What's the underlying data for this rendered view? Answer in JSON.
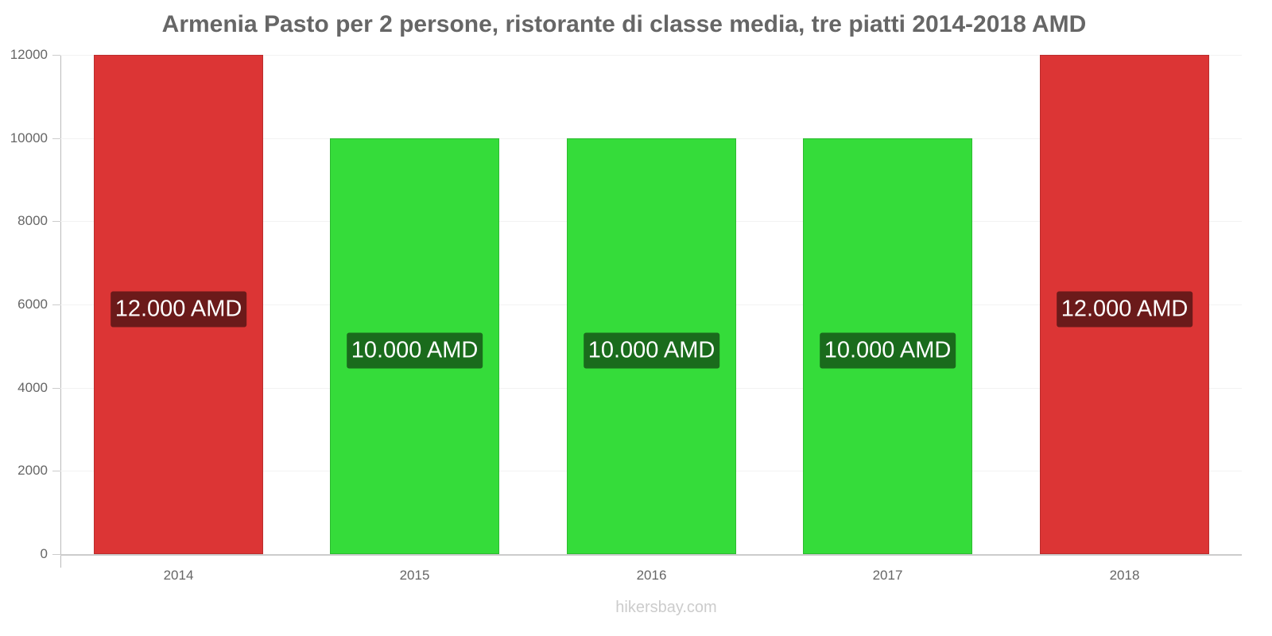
{
  "chart_data": {
    "type": "bar",
    "title": "Armenia Pasto per 2 persone, ristorante di classe media, tre piatti 2014-2018 AMD",
    "categories": [
      "2014",
      "2015",
      "2016",
      "2017",
      "2018"
    ],
    "values": [
      12000,
      10000,
      10000,
      10000,
      12000
    ],
    "value_labels": [
      "12.000 AMD",
      "10.000 AMD",
      "10.000 AMD",
      "10.000 AMD",
      "12.000 AMD"
    ],
    "bar_colors": [
      "#dc3535",
      "#35dc3a",
      "#35dc3a",
      "#35dc3a",
      "#dc3535"
    ],
    "label_bg_colors": [
      "#6b1a1a",
      "#1a6b1c",
      "#1a6b1c",
      "#1a6b1c",
      "#6b1a1a"
    ],
    "xlabel": "",
    "ylabel": "",
    "ylim": [
      0,
      12000
    ],
    "yticks": [
      0,
      2000,
      4000,
      6000,
      8000,
      10000,
      12000
    ],
    "grid": true,
    "legend": null
  },
  "credit": "hikersbay.com"
}
